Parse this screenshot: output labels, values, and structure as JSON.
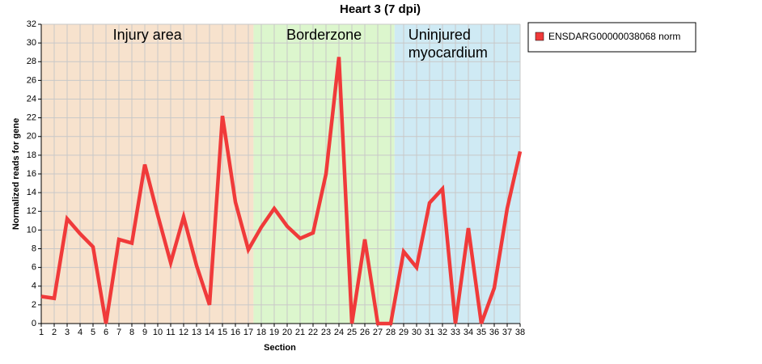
{
  "chart_data": {
    "type": "line",
    "title": "Heart 3 (7 dpi)",
    "x_label": "Section",
    "y_label": "Normalized reads for gene",
    "x": [
      1,
      2,
      3,
      4,
      5,
      6,
      7,
      8,
      9,
      10,
      11,
      12,
      13,
      14,
      15,
      16,
      17,
      18,
      19,
      20,
      21,
      22,
      23,
      24,
      25,
      26,
      27,
      28,
      29,
      30,
      31,
      32,
      33,
      34,
      35,
      36,
      37,
      38
    ],
    "series": [
      {
        "name": "ENSDARG00000038068 norm",
        "color": "#f03a3a",
        "values": [
          2.9,
          2.7,
          11.2,
          9.6,
          8.2,
          0,
          9.0,
          8.6,
          17.0,
          11.6,
          6.5,
          11.4,
          6.2,
          2.0,
          22.2,
          13.0,
          7.9,
          10.3,
          12.3,
          10.4,
          9.1,
          9.7,
          16.0,
          28.5,
          0,
          9.0,
          0,
          0,
          7.7,
          6.0,
          12.9,
          14.4,
          0,
          10.2,
          0,
          3.8,
          12.3,
          18.4
        ]
      }
    ],
    "regions": [
      {
        "lines": [
          "Injury area"
        ],
        "start": 1,
        "end": 17.4,
        "color": "#f7e2cd"
      },
      {
        "lines": [
          "Borderzone"
        ],
        "start": 17.4,
        "end": 28.3,
        "color": "#dcf6cd"
      },
      {
        "lines": [
          "Uninjured",
          "myocardium"
        ],
        "start": 28.3,
        "end": 38,
        "color": "#cfeaf4"
      }
    ],
    "xlim": [
      1,
      38
    ],
    "xticks": [
      1,
      2,
      3,
      4,
      5,
      6,
      7,
      8,
      9,
      10,
      11,
      12,
      13,
      14,
      15,
      16,
      17,
      18,
      19,
      20,
      21,
      22,
      23,
      24,
      25,
      26,
      27,
      28,
      29,
      30,
      31,
      32,
      33,
      34,
      35,
      36,
      37,
      38
    ],
    "ylim": [
      0,
      32
    ],
    "yticks": [
      0,
      2,
      4,
      6,
      8,
      10,
      12,
      14,
      16,
      18,
      20,
      22,
      24,
      26,
      28,
      30,
      32
    ],
    "grid": true,
    "legend": "right"
  }
}
